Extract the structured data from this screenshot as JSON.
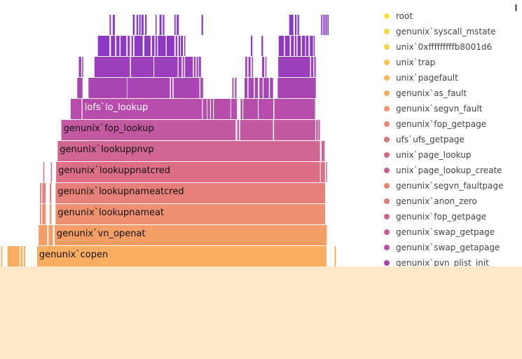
{
  "chart_data": {
    "type": "flame",
    "title": "",
    "xlabel": "",
    "ylabel": "",
    "legend_position": "right",
    "legend": [
      {
        "name": "root",
        "color": "#f2e63a"
      },
      {
        "name": "genunix`syscall_mstate",
        "color": "#f4df43"
      },
      {
        "name": "unix`0xfffffffffb8001d6",
        "color": "#f5d547"
      },
      {
        "name": "unix`trap",
        "color": "#f8c451"
      },
      {
        "name": "unix`pagefault",
        "color": "#f9b95a"
      },
      {
        "name": "genunix`as_fault",
        "color": "#f9a861"
      },
      {
        "name": "genunix`segvn_fault",
        "color": "#f3966b"
      },
      {
        "name": "genunix`fop_getpage",
        "color": "#e8866f"
      },
      {
        "name": "ufs`ufs_getpage",
        "color": "#dc7677"
      },
      {
        "name": "unix`page_lookup",
        "color": "#d36a84"
      },
      {
        "name": "unix`page_lookup_create",
        "color": "#c95c92"
      },
      {
        "name": "genunix`segvn_faultpage",
        "color": "#e6846f"
      },
      {
        "name": "genunix`anon_zero",
        "color": "#de7a78"
      },
      {
        "name": "genunix`fop_getpage",
        "color": "#cf6489"
      },
      {
        "name": "genunix`swap_getpage",
        "color": "#c75a96"
      },
      {
        "name": "genunix`swap_getapage",
        "color": "#bb4fa2"
      },
      {
        "name": "genunix`pvn_plist_init",
        "color": "#a842ad"
      }
    ],
    "frames": [
      {
        "name": "genunix`copen",
        "depth": 0,
        "start": 0.071,
        "width": 0.5545,
        "color": "#f9ad60",
        "label": true,
        "light": false
      },
      {
        "name": "",
        "depth": 0,
        "start": 0.0145,
        "width": 0.023,
        "color": "#f9ad60"
      },
      {
        "name": "",
        "depth": 0,
        "start": 0.0395,
        "width": 0.004,
        "color": "#f9ad60"
      },
      {
        "name": "",
        "depth": 0,
        "start": 0.0455,
        "width": 0.003,
        "color": "#f9ad60"
      },
      {
        "name": "",
        "depth": 0,
        "start": 0.002,
        "width": 0.0025,
        "color": "#f9ad60"
      },
      {
        "name": "",
        "depth": 0,
        "start": 0.641,
        "width": 0.0025,
        "color": "#f9ad60"
      },
      {
        "name": "genunix`vn_openat",
        "depth": 1,
        "start": 0.1045,
        "width": 0.5215,
        "color": "#f49d66",
        "label": true,
        "light": false
      },
      {
        "name": "",
        "depth": 1,
        "start": 0.074,
        "width": 0.0165,
        "color": "#f49d66"
      },
      {
        "name": "",
        "depth": 1,
        "start": 0.093,
        "width": 0.0085,
        "color": "#f49d66"
      },
      {
        "name": "genunix`lookupnameat",
        "depth": 2,
        "start": 0.1065,
        "width": 0.5165,
        "color": "#ef9170",
        "label": true,
        "light": false
      },
      {
        "name": "",
        "depth": 2,
        "start": 0.0765,
        "width": 0.0025,
        "color": "#ef9170"
      },
      {
        "name": "",
        "depth": 2,
        "start": 0.081,
        "width": 0.0065,
        "color": "#ef9170"
      },
      {
        "name": "",
        "depth": 2,
        "start": 0.0955,
        "width": 0.003,
        "color": "#ef9170"
      },
      {
        "name": "genunix`lookupnameatcred",
        "depth": 3,
        "start": 0.1065,
        "width": 0.5165,
        "color": "#e67f78",
        "label": true,
        "light": false
      },
      {
        "name": "",
        "depth": 3,
        "start": 0.0765,
        "width": 0.0025,
        "color": "#e67f78"
      },
      {
        "name": "",
        "depth": 3,
        "start": 0.081,
        "width": 0.0065,
        "color": "#e67f78"
      },
      {
        "name": "",
        "depth": 3,
        "start": 0.0955,
        "width": 0.003,
        "color": "#e67f78"
      },
      {
        "name": "genunix`lookuppnatcred",
        "depth": 4,
        "start": 0.1075,
        "width": 0.5055,
        "color": "#dc6f86",
        "label": true,
        "light": false
      },
      {
        "name": "",
        "depth": 4,
        "start": 0.6145,
        "width": 0.008,
        "color": "#dc6f86"
      },
      {
        "name": "",
        "depth": 4,
        "start": 0.083,
        "width": 0.002,
        "color": "#dc6f86"
      },
      {
        "name": "",
        "depth": 4,
        "start": 0.0975,
        "width": 0.002,
        "color": "#dc6f86"
      },
      {
        "name": "",
        "depth": 4,
        "start": 0.6245,
        "width": 0.002,
        "color": "#dc6f86"
      },
      {
        "name": "genunix`lookuppnvp",
        "depth": 5,
        "start": 0.1105,
        "width": 0.5025,
        "color": "#d06592",
        "label": true,
        "light": false
      },
      {
        "name": "",
        "depth": 5,
        "start": 0.616,
        "width": 0.006,
        "color": "#d06592"
      },
      {
        "name": "genunix`fop_lookup",
        "depth": 6,
        "start": 0.1175,
        "width": 0.334,
        "color": "#c459a1",
        "label": true,
        "light": false
      },
      {
        "name": "",
        "depth": 6,
        "start": 0.4545,
        "width": 0.0035,
        "color": "#c459a1"
      },
      {
        "name": "",
        "depth": 6,
        "start": 0.46,
        "width": 0.063,
        "color": "#c459a1"
      },
      {
        "name": "",
        "depth": 6,
        "start": 0.525,
        "width": 0.079,
        "color": "#c459a1"
      },
      {
        "name": "",
        "depth": 6,
        "start": 0.6055,
        "width": 0.0035,
        "color": "#c459a1"
      },
      {
        "name": "",
        "depth": 6,
        "start": 0.61,
        "width": 0.003,
        "color": "#c459a1"
      },
      {
        "name": "lofs`lo_lookup",
        "depth": 7,
        "start": 0.1355,
        "width": 0.021,
        "color": "#b84cad"
      },
      {
        "name": "lofs`lo_lookup",
        "depth": 7,
        "start": 0.158,
        "width": 0.229,
        "color": "#b84cad",
        "label": true,
        "light": true
      },
      {
        "name": "",
        "depth": 7,
        "start": 0.3885,
        "width": 0.0075,
        "color": "#b84cad"
      },
      {
        "name": "",
        "depth": 7,
        "start": 0.3975,
        "width": 0.005,
        "color": "#b84cad"
      },
      {
        "name": "",
        "depth": 7,
        "start": 0.404,
        "width": 0.004,
        "color": "#b84cad"
      },
      {
        "name": "",
        "depth": 7,
        "start": 0.4095,
        "width": 0.032,
        "color": "#b84cad"
      },
      {
        "name": "",
        "depth": 7,
        "start": 0.443,
        "width": 0.011,
        "color": "#b84cad"
      },
      {
        "name": "",
        "depth": 7,
        "start": 0.461,
        "width": 0.0035,
        "color": "#b84cad"
      },
      {
        "name": "",
        "depth": 7,
        "start": 0.466,
        "width": 0.028,
        "color": "#b84cad"
      },
      {
        "name": "",
        "depth": 7,
        "start": 0.4955,
        "width": 0.028,
        "color": "#b84cad"
      },
      {
        "name": "",
        "depth": 7,
        "start": 0.5255,
        "width": 0.078,
        "color": "#b84cad"
      },
      {
        "name": "",
        "depth": 8,
        "start": 0.148,
        "width": 0.01,
        "color": "#a844b4"
      },
      {
        "name": "",
        "depth": 8,
        "start": 0.1695,
        "width": 0.0735,
        "color": "#a844b4"
      },
      {
        "name": "",
        "depth": 8,
        "start": 0.244,
        "width": 0.0815,
        "color": "#a844b4"
      },
      {
        "name": "",
        "depth": 8,
        "start": 0.3275,
        "width": 0.003,
        "color": "#a844b4"
      },
      {
        "name": "",
        "depth": 8,
        "start": 0.3325,
        "width": 0.0495,
        "color": "#a844b4"
      },
      {
        "name": "",
        "depth": 8,
        "start": 0.384,
        "width": 0.005,
        "color": "#a844b4"
      },
      {
        "name": "",
        "depth": 8,
        "start": 0.445,
        "width": 0.0025,
        "color": "#a844b4"
      },
      {
        "name": "",
        "depth": 8,
        "start": 0.45,
        "width": 0.003,
        "color": "#a844b4"
      },
      {
        "name": "",
        "depth": 8,
        "start": 0.4685,
        "width": 0.0055,
        "color": "#a844b4"
      },
      {
        "name": "",
        "depth": 8,
        "start": 0.476,
        "width": 0.01,
        "color": "#a844b4"
      },
      {
        "name": "",
        "depth": 8,
        "start": 0.488,
        "width": 0.006,
        "color": "#a844b4"
      },
      {
        "name": "",
        "depth": 8,
        "start": 0.497,
        "width": 0.006,
        "color": "#a844b4"
      },
      {
        "name": "",
        "depth": 8,
        "start": 0.505,
        "width": 0.01,
        "color": "#a844b4"
      },
      {
        "name": "",
        "depth": 8,
        "start": 0.517,
        "width": 0.006,
        "color": "#a844b4"
      },
      {
        "name": "",
        "depth": 8,
        "start": 0.532,
        "width": 0.073,
        "color": "#a844b4"
      },
      {
        "name": "",
        "depth": 9,
        "start": 0.151,
        "width": 0.0045,
        "color": "#9c3fbc"
      },
      {
        "name": "",
        "depth": 9,
        "start": 0.1575,
        "width": 0.002,
        "color": "#9c3fbc"
      },
      {
        "name": "",
        "depth": 9,
        "start": 0.181,
        "width": 0.068,
        "color": "#9c3fbc"
      },
      {
        "name": "",
        "depth": 9,
        "start": 0.251,
        "width": 0.043,
        "color": "#9c3fbc"
      },
      {
        "name": "",
        "depth": 9,
        "start": 0.2955,
        "width": 0.045,
        "color": "#9c3fbc"
      },
      {
        "name": "",
        "depth": 9,
        "start": 0.342,
        "width": 0.006,
        "color": "#9c3fbc"
      },
      {
        "name": "",
        "depth": 9,
        "start": 0.35,
        "width": 0.0025,
        "color": "#9c3fbc"
      },
      {
        "name": "",
        "depth": 9,
        "start": 0.3545,
        "width": 0.015,
        "color": "#9c3fbc"
      },
      {
        "name": "",
        "depth": 9,
        "start": 0.3715,
        "width": 0.003,
        "color": "#9c3fbc"
      },
      {
        "name": "",
        "depth": 9,
        "start": 0.3765,
        "width": 0.003,
        "color": "#9c3fbc"
      },
      {
        "name": "",
        "depth": 9,
        "start": 0.381,
        "width": 0.004,
        "color": "#9c3fbc"
      },
      {
        "name": "",
        "depth": 9,
        "start": 0.47,
        "width": 0.0035,
        "color": "#9c3fbc"
      },
      {
        "name": "",
        "depth": 9,
        "start": 0.476,
        "width": 0.004,
        "color": "#9c3fbc"
      },
      {
        "name": "",
        "depth": 9,
        "start": 0.4825,
        "width": 0.002,
        "color": "#9c3fbc"
      },
      {
        "name": "",
        "depth": 9,
        "start": 0.502,
        "width": 0.004,
        "color": "#9c3fbc"
      },
      {
        "name": "",
        "depth": 9,
        "start": 0.5085,
        "width": 0.002,
        "color": "#9c3fbc"
      },
      {
        "name": "",
        "depth": 9,
        "start": 0.533,
        "width": 0.061,
        "color": "#9c3fbc"
      },
      {
        "name": "",
        "depth": 9,
        "start": 0.596,
        "width": 0.004,
        "color": "#9c3fbc"
      },
      {
        "name": "",
        "depth": 9,
        "start": 0.602,
        "width": 0.003,
        "color": "#9c3fbc"
      },
      {
        "name": "",
        "depth": 10,
        "start": 0.1875,
        "width": 0.022,
        "color": "#8f38c4"
      },
      {
        "name": "",
        "depth": 10,
        "start": 0.2125,
        "width": 0.008,
        "color": "#8f38c4"
      },
      {
        "name": "",
        "depth": 10,
        "start": 0.223,
        "width": 0.006,
        "color": "#8f38c4"
      },
      {
        "name": "",
        "depth": 10,
        "start": 0.231,
        "width": 0.011,
        "color": "#8f38c4"
      },
      {
        "name": "",
        "depth": 10,
        "start": 0.2445,
        "width": 0.004,
        "color": "#8f38c4"
      },
      {
        "name": "",
        "depth": 10,
        "start": 0.252,
        "width": 0.003,
        "color": "#8f38c4"
      },
      {
        "name": "",
        "depth": 10,
        "start": 0.2575,
        "width": 0.016,
        "color": "#8f38c4"
      },
      {
        "name": "",
        "depth": 10,
        "start": 0.2765,
        "width": 0.012,
        "color": "#8f38c4"
      },
      {
        "name": "",
        "depth": 10,
        "start": 0.291,
        "width": 0.005,
        "color": "#8f38c4"
      },
      {
        "name": "",
        "depth": 10,
        "start": 0.298,
        "width": 0.003,
        "color": "#8f38c4"
      },
      {
        "name": "",
        "depth": 10,
        "start": 0.3025,
        "width": 0.015,
        "color": "#8f38c4"
      },
      {
        "name": "",
        "depth": 10,
        "start": 0.3195,
        "width": 0.0145,
        "color": "#8f38c4"
      },
      {
        "name": "",
        "depth": 10,
        "start": 0.3365,
        "width": 0.003,
        "color": "#8f38c4"
      },
      {
        "name": "",
        "depth": 10,
        "start": 0.342,
        "width": 0.003,
        "color": "#8f38c4"
      },
      {
        "name": "",
        "depth": 10,
        "start": 0.3465,
        "width": 0.004,
        "color": "#8f38c4"
      },
      {
        "name": "",
        "depth": 10,
        "start": 0.353,
        "width": 0.002,
        "color": "#8f38c4"
      },
      {
        "name": "",
        "depth": 10,
        "start": 0.4805,
        "width": 0.003,
        "color": "#8f38c4"
      },
      {
        "name": "",
        "depth": 10,
        "start": 0.501,
        "width": 0.003,
        "color": "#8f38c4"
      },
      {
        "name": "",
        "depth": 10,
        "start": 0.534,
        "width": 0.01,
        "color": "#8f38c4"
      },
      {
        "name": "",
        "depth": 10,
        "start": 0.546,
        "width": 0.009,
        "color": "#8f38c4"
      },
      {
        "name": "",
        "depth": 10,
        "start": 0.5575,
        "width": 0.0055,
        "color": "#8f38c4"
      },
      {
        "name": "",
        "depth": 10,
        "start": 0.565,
        "width": 0.003,
        "color": "#8f38c4"
      },
      {
        "name": "",
        "depth": 10,
        "start": 0.57,
        "width": 0.0065,
        "color": "#8f38c4"
      },
      {
        "name": "",
        "depth": 10,
        "start": 0.5785,
        "width": 0.006,
        "color": "#8f38c4"
      },
      {
        "name": "",
        "depth": 10,
        "start": 0.586,
        "width": 0.005,
        "color": "#8f38c4"
      },
      {
        "name": "",
        "depth": 10,
        "start": 0.5935,
        "width": 0.006,
        "color": "#8f38c4"
      },
      {
        "name": "",
        "depth": 10,
        "start": 0.601,
        "width": 0.002,
        "color": "#8f38c4"
      },
      {
        "name": "",
        "depth": 11,
        "start": 0.21,
        "width": 0.0025,
        "color": "#833ac8"
      },
      {
        "name": "",
        "depth": 11,
        "start": 0.216,
        "width": 0.004,
        "color": "#833ac8"
      },
      {
        "name": "",
        "depth": 11,
        "start": 0.2545,
        "width": 0.0035,
        "color": "#833ac8"
      },
      {
        "name": "",
        "depth": 11,
        "start": 0.2615,
        "width": 0.003,
        "color": "#833ac8"
      },
      {
        "name": "",
        "depth": 11,
        "start": 0.2665,
        "width": 0.003,
        "color": "#833ac8"
      },
      {
        "name": "",
        "depth": 11,
        "start": 0.271,
        "width": 0.004,
        "color": "#833ac8"
      },
      {
        "name": "",
        "depth": 11,
        "start": 0.278,
        "width": 0.003,
        "color": "#833ac8"
      },
      {
        "name": "",
        "depth": 11,
        "start": 0.298,
        "width": 0.002,
        "color": "#833ac8"
      },
      {
        "name": "",
        "depth": 11,
        "start": 0.3055,
        "width": 0.004,
        "color": "#833ac8"
      },
      {
        "name": "",
        "depth": 11,
        "start": 0.312,
        "width": 0.003,
        "color": "#833ac8"
      },
      {
        "name": "",
        "depth": 11,
        "start": 0.334,
        "width": 0.0025,
        "color": "#833ac8"
      },
      {
        "name": "",
        "depth": 11,
        "start": 0.3385,
        "width": 0.004,
        "color": "#833ac8"
      },
      {
        "name": "",
        "depth": 11,
        "start": 0.386,
        "width": 0.003,
        "color": "#833ac8"
      },
      {
        "name": "",
        "depth": 11,
        "start": 0.554,
        "width": 0.008,
        "color": "#833ac8"
      },
      {
        "name": "",
        "depth": 11,
        "start": 0.565,
        "width": 0.003,
        "color": "#833ac8"
      },
      {
        "name": "",
        "depth": 11,
        "start": 0.57,
        "width": 0.003,
        "color": "#833ac8"
      },
      {
        "name": "",
        "depth": 11,
        "start": 0.615,
        "width": 0.002,
        "color": "#833ac8"
      },
      {
        "name": "",
        "depth": 11,
        "start": 0.6185,
        "width": 0.002,
        "color": "#833ac8"
      },
      {
        "name": "",
        "depth": 11,
        "start": 0.6215,
        "width": 0.002,
        "color": "#833ac8"
      },
      {
        "name": "",
        "depth": 11,
        "start": 0.6245,
        "width": 0.002,
        "color": "#833ac8"
      },
      {
        "name": "",
        "depth": 11,
        "start": 0.6275,
        "width": 0.002,
        "color": "#833ac8"
      }
    ]
  }
}
